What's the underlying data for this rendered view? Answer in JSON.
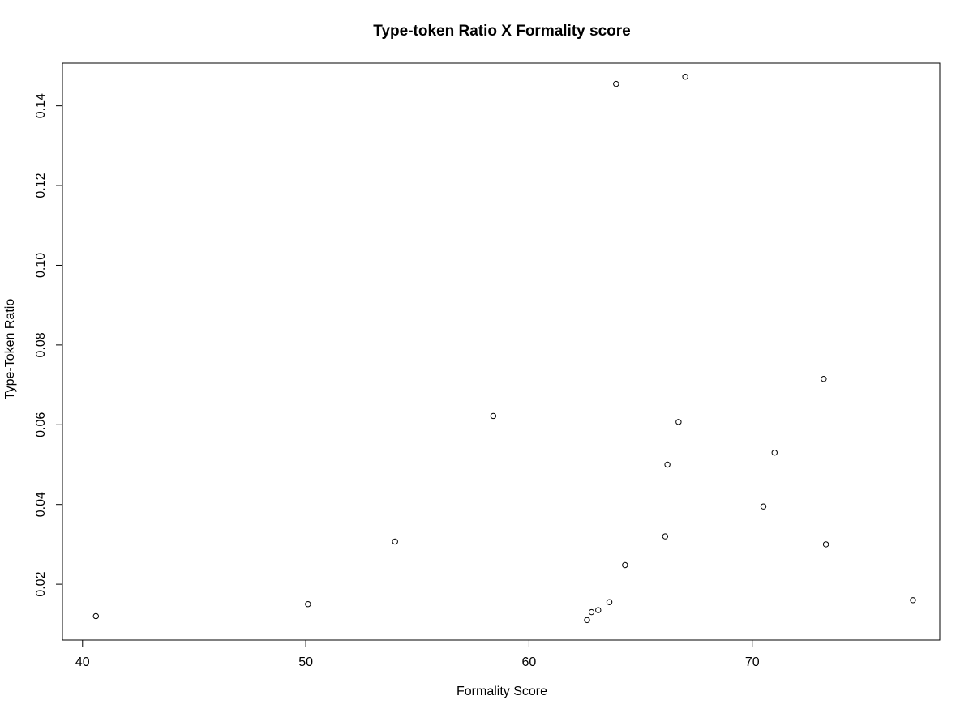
{
  "chart_data": {
    "type": "scatter",
    "title": "Type-token Ratio X Formality score",
    "xlabel": "Formality Score",
    "ylabel": "Type-Token Ratio",
    "xlim": [
      39.1,
      78.4
    ],
    "ylim": [
      0.006,
      0.1507
    ],
    "x_ticks": [
      40,
      50,
      60,
      70
    ],
    "x_tick_labels": [
      "40",
      "50",
      "60",
      "70"
    ],
    "y_ticks": [
      0.02,
      0.04,
      0.06,
      0.08,
      0.1,
      0.12,
      0.14
    ],
    "y_tick_labels": [
      "0.02",
      "0.04",
      "0.06",
      "0.08",
      "0.10",
      "0.12",
      "0.14"
    ],
    "grid": false,
    "legend": "none",
    "marker": "open-circle",
    "points": [
      {
        "x": 40.6,
        "y": 0.012
      },
      {
        "x": 50.1,
        "y": 0.015
      },
      {
        "x": 54.0,
        "y": 0.0307
      },
      {
        "x": 58.4,
        "y": 0.0622
      },
      {
        "x": 62.6,
        "y": 0.011
      },
      {
        "x": 62.8,
        "y": 0.013
      },
      {
        "x": 63.1,
        "y": 0.0135
      },
      {
        "x": 63.6,
        "y": 0.0155
      },
      {
        "x": 63.9,
        "y": 0.1455
      },
      {
        "x": 64.3,
        "y": 0.0248
      },
      {
        "x": 66.1,
        "y": 0.032
      },
      {
        "x": 66.2,
        "y": 0.05
      },
      {
        "x": 66.7,
        "y": 0.0607
      },
      {
        "x": 67.0,
        "y": 0.1473
      },
      {
        "x": 70.5,
        "y": 0.0395
      },
      {
        "x": 71.0,
        "y": 0.053
      },
      {
        "x": 73.2,
        "y": 0.0715
      },
      {
        "x": 73.3,
        "y": 0.03
      },
      {
        "x": 77.2,
        "y": 0.016
      }
    ]
  }
}
